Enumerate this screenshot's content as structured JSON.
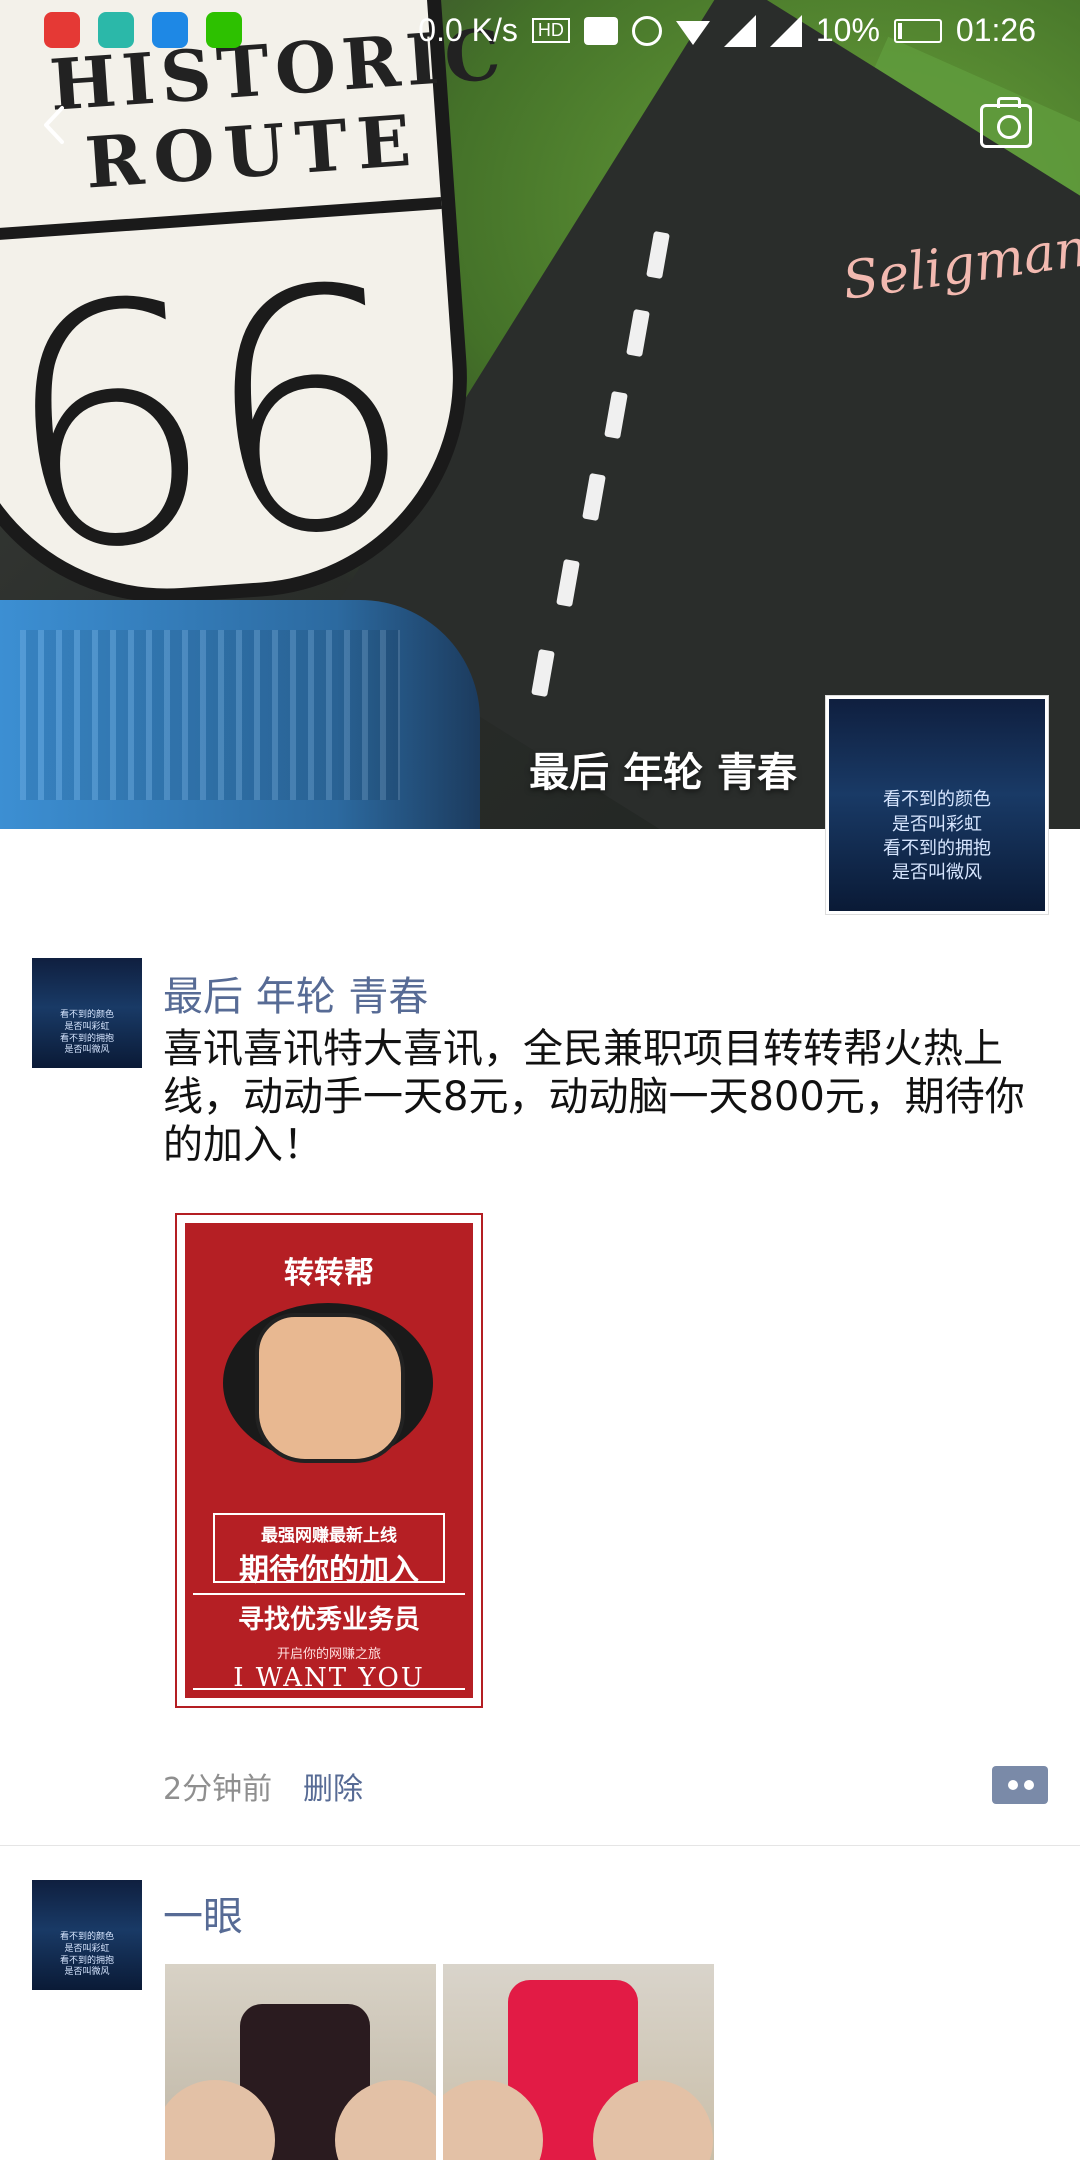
{
  "status_bar": {
    "speed": "0.0 K/s",
    "hd": "HD",
    "battery": "10%",
    "time": "01:26",
    "battery_level": 0.1,
    "app_icons": [
      "app-icon-1",
      "app-icon-2",
      "app-icon-3",
      "wechat-icon"
    ]
  },
  "cover": {
    "name": "最后 年轮 青春",
    "shield_line1": "HISTORIC",
    "shield_line2": "ROUTE",
    "shield_number": "66",
    "graffiti": "Seligman"
  },
  "profile_avatar": {
    "lines": [
      "看不到的颜色",
      "是否叫彩虹",
      "看不到的拥抱",
      "是否叫微风"
    ]
  },
  "posts": [
    {
      "author": "最后 年轮 青春",
      "text": "喜讯喜讯特大喜讯，全民兼职项目转转帮火热上线，动动手一天8元，动动脑一天800元，期待你的加入！",
      "time": "2分钟前",
      "delete_label": "删除",
      "poster": {
        "title": "转转帮",
        "line1": "最强网赚最新上线",
        "line2": "期待你的加入",
        "line3": "寻找优秀业务员",
        "line4": "开启你的网赚之旅",
        "line5": "I WANT YOU"
      }
    },
    {
      "author": "一眼"
    }
  ],
  "colors": {
    "link": "#576b95",
    "text": "#111111",
    "meta": "#8f8f8f",
    "poster_red": "#b51f24"
  }
}
